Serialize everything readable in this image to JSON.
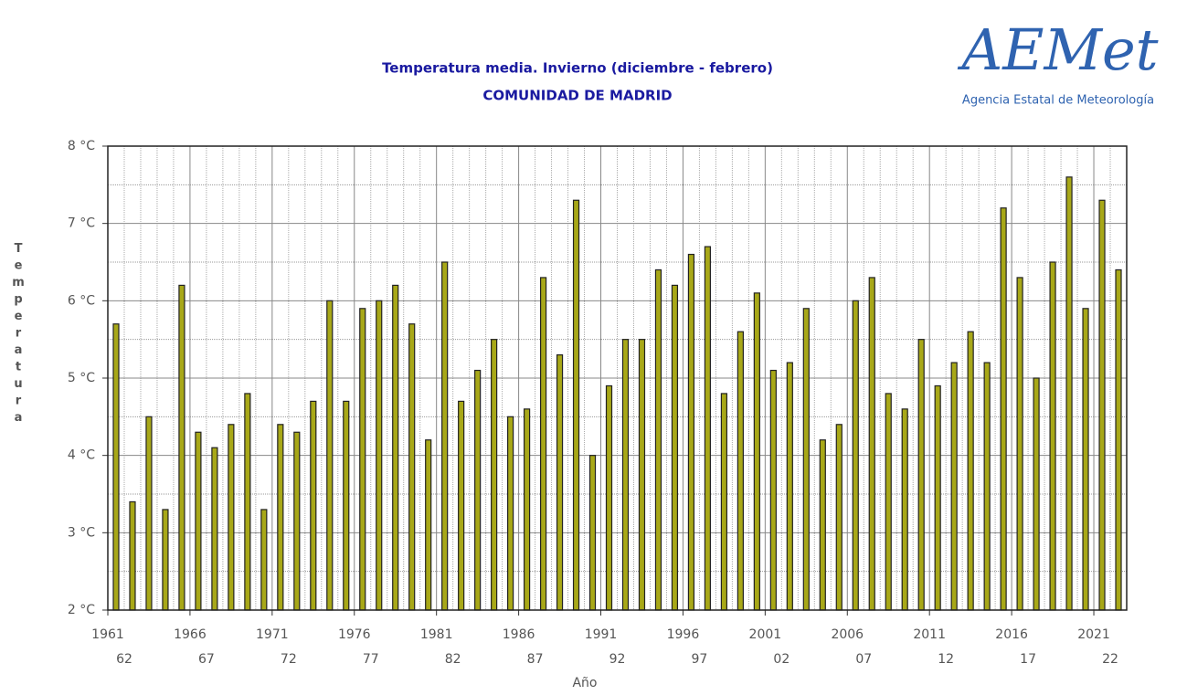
{
  "chart_data": {
    "type": "bar",
    "title": "Temperatura media. Invierno (diciembre - febrero)",
    "subtitle": "COMUNIDAD DE MADRID",
    "logo": {
      "name": "AEMet",
      "caption": "Agencia Estatal de Meteorología"
    },
    "y_label": "Temperatura",
    "x_label": "Año",
    "categories": [
      "1961",
      null,
      null,
      null,
      null,
      "1966",
      null,
      null,
      null,
      null,
      "1971",
      null,
      null,
      null,
      null,
      "1976",
      null,
      null,
      null,
      null,
      "1981",
      null,
      null,
      null,
      null,
      "1986",
      null,
      null,
      null,
      null,
      "1991",
      null,
      null,
      null,
      null,
      "1996",
      null,
      null,
      null,
      null,
      "2001",
      null,
      null,
      null,
      null,
      "2006",
      null,
      null,
      null,
      null,
      "2011",
      null,
      null,
      null,
      null,
      "2016",
      null,
      null,
      null,
      null,
      "2021",
      null
    ],
    "categories_end": [
      "62",
      null,
      null,
      null,
      null,
      "67",
      null,
      null,
      null,
      null,
      "72",
      null,
      null,
      null,
      null,
      "77",
      null,
      null,
      null,
      null,
      "82",
      null,
      null,
      null,
      null,
      "87",
      null,
      null,
      null,
      null,
      "92",
      null,
      null,
      null,
      null,
      "97",
      null,
      null,
      null,
      null,
      "02",
      null,
      null,
      null,
      null,
      "07",
      null,
      null,
      null,
      null,
      "12",
      null,
      null,
      null,
      null,
      "17",
      null,
      null,
      null,
      null,
      "22",
      null
    ],
    "values": [
      5.7,
      3.4,
      4.5,
      3.3,
      6.2,
      4.3,
      4.1,
      4.4,
      4.8,
      3.3,
      4.4,
      4.3,
      4.7,
      6.0,
      4.7,
      5.9,
      6.0,
      6.2,
      5.7,
      4.2,
      6.5,
      4.7,
      5.1,
      5.5,
      4.5,
      4.6,
      6.3,
      5.3,
      7.3,
      4.0,
      4.9,
      5.5,
      5.5,
      6.4,
      6.2,
      6.6,
      6.7,
      4.8,
      5.6,
      6.1,
      5.1,
      5.2,
      5.9,
      4.2,
      4.4,
      6.0,
      6.3,
      4.8,
      4.6,
      5.5,
      4.9,
      5.2,
      5.6,
      5.2,
      7.2,
      6.3,
      5.0,
      6.5,
      7.6,
      5.9,
      7.3,
      6.4
    ],
    "color": "#a8a818",
    "ylim": [
      2,
      8
    ],
    "yticks": [
      {
        "value": 2,
        "label": "2 °C"
      },
      {
        "value": 3,
        "label": "3 °C"
      },
      {
        "value": 4,
        "label": "4 °C"
      },
      {
        "value": 5,
        "label": "5 °C"
      },
      {
        "value": 6,
        "label": "6 °C"
      },
      {
        "value": 7,
        "label": "7 °C"
      },
      {
        "value": 8,
        "label": "8 °C"
      }
    ],
    "grid": true
  }
}
